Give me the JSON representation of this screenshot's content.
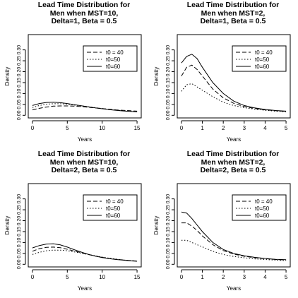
{
  "chart_data": [
    {
      "type": "line",
      "title_lines": [
        "Lead Time Distribution for",
        "Men when MST=10,",
        "Delta=1, Beta = 0.5"
      ],
      "xlabel": "Years",
      "ylabel": "Density",
      "xlim": [
        -0.6,
        15.6
      ],
      "ylim": [
        -0.012,
        0.37
      ],
      "xticks": [
        0,
        5,
        10,
        15
      ],
      "xtick_labels": [
        "0",
        "5",
        "10",
        "15"
      ],
      "yticks": [
        0.0,
        0.05,
        0.1,
        0.15,
        0.2,
        0.25,
        0.3
      ],
      "ytick_labels": [
        "0.00",
        "0.05",
        "0.10",
        "0.15",
        "0.20",
        "0.25",
        "0.30"
      ],
      "legend_position": "top-right",
      "series": [
        {
          "name": "t0 = 40",
          "dash": "dashed",
          "x": [
            0,
            1,
            2,
            3,
            4,
            5,
            6,
            7,
            8,
            9,
            10,
            11,
            12,
            13,
            14,
            15
          ],
          "y": [
            0.025,
            0.032,
            0.038,
            0.042,
            0.043,
            0.043,
            0.042,
            0.04,
            0.037,
            0.034,
            0.031,
            0.028,
            0.025,
            0.023,
            0.021,
            0.019
          ]
        },
        {
          "name": "t0=50",
          "dash": "dotted",
          "x": [
            0,
            1,
            2,
            3,
            4,
            5,
            6,
            7,
            8,
            9,
            10,
            11,
            12,
            13,
            14,
            15
          ],
          "y": [
            0.036,
            0.045,
            0.051,
            0.053,
            0.053,
            0.051,
            0.047,
            0.043,
            0.039,
            0.035,
            0.031,
            0.027,
            0.024,
            0.021,
            0.019,
            0.017
          ]
        },
        {
          "name": "t0=60",
          "dash": "solid",
          "x": [
            0,
            1,
            2,
            3,
            4,
            5,
            6,
            7,
            8,
            9,
            10,
            11,
            12,
            13,
            14,
            15
          ],
          "y": [
            0.045,
            0.054,
            0.059,
            0.06,
            0.058,
            0.054,
            0.049,
            0.044,
            0.039,
            0.034,
            0.03,
            0.026,
            0.023,
            0.02,
            0.018,
            0.016
          ]
        }
      ]
    },
    {
      "type": "line",
      "title_lines": [
        "Lead Time Distribution for",
        "Men when MST=2,",
        "Delta=1, Beta = 0.5"
      ],
      "xlabel": "Years",
      "ylabel": "Density",
      "xlim": [
        -0.2,
        5.2
      ],
      "ylim": [
        -0.012,
        0.37
      ],
      "xticks": [
        0,
        1,
        2,
        3,
        4,
        5
      ],
      "xtick_labels": [
        "0",
        "1",
        "2",
        "3",
        "4",
        "5"
      ],
      "yticks": [
        0.0,
        0.05,
        0.1,
        0.15,
        0.2,
        0.25,
        0.3
      ],
      "ytick_labels": [
        "0.00",
        "0.05",
        "0.10",
        "0.15",
        "0.20",
        "0.25",
        "0.30"
      ],
      "legend_position": "top-right",
      "series": [
        {
          "name": "t0 = 40",
          "dash": "dashed",
          "x": [
            0,
            0.25,
            0.5,
            0.75,
            1,
            1.5,
            2,
            2.5,
            3,
            3.5,
            4,
            4.5,
            5
          ],
          "y": [
            0.18,
            0.22,
            0.23,
            0.21,
            0.18,
            0.12,
            0.08,
            0.055,
            0.04,
            0.031,
            0.025,
            0.021,
            0.018
          ]
        },
        {
          "name": "t0=50",
          "dash": "dotted",
          "x": [
            0,
            0.25,
            0.5,
            0.75,
            1,
            1.5,
            2,
            2.5,
            3,
            3.5,
            4,
            4.5,
            5
          ],
          "y": [
            0.11,
            0.14,
            0.145,
            0.13,
            0.115,
            0.085,
            0.06,
            0.045,
            0.035,
            0.028,
            0.023,
            0.019,
            0.016
          ]
        },
        {
          "name": "t0=60",
          "dash": "solid",
          "x": [
            0,
            0.25,
            0.5,
            0.75,
            1,
            1.5,
            2,
            2.5,
            3,
            3.5,
            4,
            4.5,
            5
          ],
          "y": [
            0.24,
            0.27,
            0.28,
            0.26,
            0.22,
            0.15,
            0.1,
            0.065,
            0.045,
            0.034,
            0.027,
            0.022,
            0.019
          ]
        }
      ]
    },
    {
      "type": "line",
      "title_lines": [
        "Lead Time Distribution for",
        "Men when MST=10,",
        "Delta=2, Beta = 0.5"
      ],
      "xlabel": "Years",
      "ylabel": "Density",
      "xlim": [
        -0.6,
        15.6
      ],
      "ylim": [
        -0.012,
        0.37
      ],
      "xticks": [
        0,
        5,
        10,
        15
      ],
      "xtick_labels": [
        "0",
        "5",
        "10",
        "15"
      ],
      "yticks": [
        0.0,
        0.05,
        0.1,
        0.15,
        0.2,
        0.25,
        0.3
      ],
      "ytick_labels": [
        "0.00",
        "0.05",
        "0.10",
        "0.15",
        "0.20",
        "0.25",
        "0.30"
      ],
      "legend_position": "top-right",
      "series": [
        {
          "name": "t0 = 40",
          "dash": "dashed",
          "x": [
            0,
            1,
            2,
            3,
            4,
            5,
            6,
            7,
            8,
            9,
            10,
            11,
            12,
            13,
            14,
            15
          ],
          "y": [
            0.06,
            0.072,
            0.078,
            0.079,
            0.076,
            0.069,
            0.061,
            0.053,
            0.045,
            0.038,
            0.032,
            0.027,
            0.023,
            0.02,
            0.017,
            0.015
          ]
        },
        {
          "name": "t0=50",
          "dash": "dotted",
          "x": [
            0,
            1,
            2,
            3,
            4,
            5,
            6,
            7,
            8,
            9,
            10,
            11,
            12,
            13,
            14,
            15
          ],
          "y": [
            0.045,
            0.055,
            0.062,
            0.065,
            0.065,
            0.062,
            0.057,
            0.051,
            0.045,
            0.039,
            0.033,
            0.028,
            0.024,
            0.02,
            0.017,
            0.015
          ]
        },
        {
          "name": "t0=60",
          "dash": "solid",
          "x": [
            0,
            1,
            2,
            3,
            4,
            5,
            6,
            7,
            8,
            9,
            10,
            11,
            12,
            13,
            14,
            15
          ],
          "y": [
            0.075,
            0.086,
            0.093,
            0.094,
            0.089,
            0.079,
            0.067,
            0.056,
            0.046,
            0.038,
            0.031,
            0.026,
            0.022,
            0.019,
            0.016,
            0.014
          ]
        }
      ]
    },
    {
      "type": "line",
      "title_lines": [
        "Lead Time Distribution for",
        "Men when MST=2,",
        "Delta=2, Beta = 0.5"
      ],
      "xlabel": "Years",
      "ylabel": "Density",
      "xlim": [
        -0.2,
        5.2
      ],
      "ylim": [
        -0.012,
        0.37
      ],
      "xticks": [
        0,
        1,
        2,
        3,
        4,
        5
      ],
      "xtick_labels": [
        "0",
        "1",
        "2",
        "3",
        "4",
        "5"
      ],
      "yticks": [
        0.0,
        0.05,
        0.1,
        0.15,
        0.2,
        0.25,
        0.3
      ],
      "ytick_labels": [
        "0.00",
        "0.05",
        "0.10",
        "0.15",
        "0.20",
        "0.25",
        "0.30"
      ],
      "legend_position": "top-right",
      "series": [
        {
          "name": "t0 = 40",
          "dash": "dashed",
          "x": [
            0,
            0.25,
            0.5,
            0.75,
            1,
            1.5,
            2,
            2.5,
            3,
            3.5,
            4,
            4.5,
            5
          ],
          "y": [
            0.19,
            0.19,
            0.175,
            0.155,
            0.13,
            0.09,
            0.063,
            0.047,
            0.037,
            0.03,
            0.026,
            0.022,
            0.02
          ]
        },
        {
          "name": "t0=50",
          "dash": "dotted",
          "x": [
            0,
            0.25,
            0.5,
            0.75,
            1,
            1.5,
            2,
            2.5,
            3,
            3.5,
            4,
            4.5,
            5
          ],
          "y": [
            0.11,
            0.11,
            0.1,
            0.09,
            0.08,
            0.06,
            0.045,
            0.036,
            0.03,
            0.025,
            0.022,
            0.019,
            0.017
          ]
        },
        {
          "name": "t0=60",
          "dash": "solid",
          "x": [
            0,
            0.25,
            0.5,
            0.75,
            1,
            1.5,
            2,
            2.5,
            3,
            3.5,
            4,
            4.5,
            5
          ],
          "y": [
            0.24,
            0.235,
            0.21,
            0.18,
            0.15,
            0.1,
            0.068,
            0.05,
            0.039,
            0.032,
            0.027,
            0.023,
            0.021
          ]
        }
      ]
    }
  ]
}
